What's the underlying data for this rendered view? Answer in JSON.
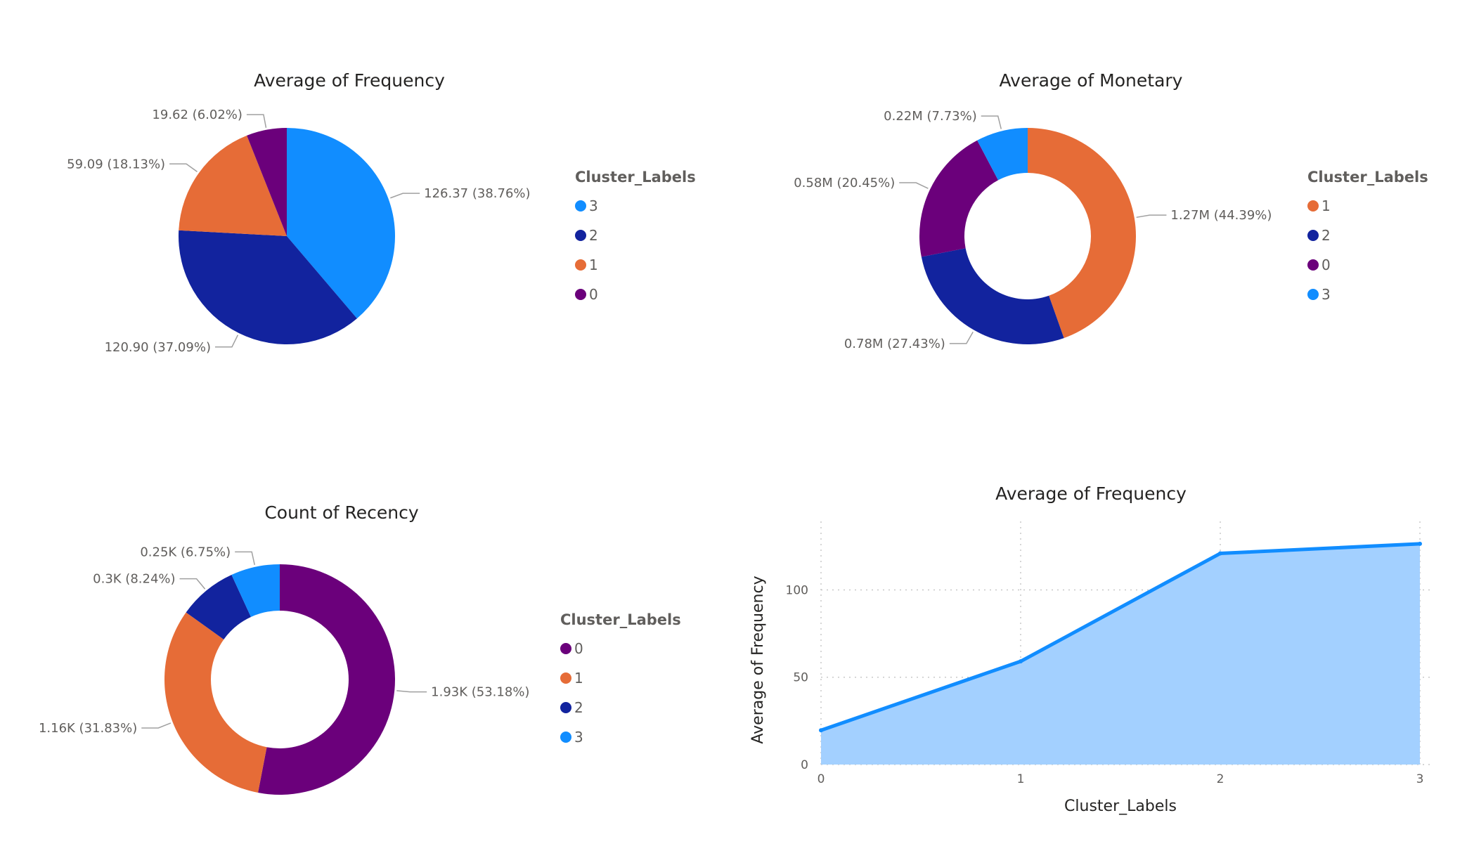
{
  "colors": {
    "0": "#6b007b",
    "1": "#e66c37",
    "2": "#12239e",
    "3": "#118dff",
    "area_fill": "#a3d0ff",
    "line": "#118dff"
  },
  "chart_data": [
    {
      "id": "freq_pie",
      "type": "pie",
      "title": "Average of Frequency",
      "legend_title": "Cluster_Labels",
      "legend_order": [
        "3",
        "2",
        "1",
        "0"
      ],
      "slices": [
        {
          "label": "3",
          "value": 126.37,
          "text": "126.37 (38.76%)"
        },
        {
          "label": "2",
          "value": 120.9,
          "text": "120.90 (37.09%)"
        },
        {
          "label": "1",
          "value": 59.09,
          "text": "59.09 (18.13%)"
        },
        {
          "label": "0",
          "value": 19.62,
          "text": "19.62 (6.02%)"
        }
      ]
    },
    {
      "id": "monetary_donut",
      "type": "pie",
      "title": "Average of Monetary",
      "legend_title": "Cluster_Labels",
      "legend_order": [
        "1",
        "2",
        "0",
        "3"
      ],
      "slices": [
        {
          "label": "1",
          "value": 1.27,
          "text": "1.27M (44.39%)"
        },
        {
          "label": "2",
          "value": 0.78,
          "text": "0.78M (27.43%)"
        },
        {
          "label": "0",
          "value": 0.58,
          "text": "0.58M (20.45%)"
        },
        {
          "label": "3",
          "value": 0.22,
          "text": "0.22M (7.73%)"
        }
      ]
    },
    {
      "id": "recency_donut",
      "type": "pie",
      "title": "Count of Recency",
      "legend_title": "Cluster_Labels",
      "legend_order": [
        "0",
        "1",
        "2",
        "3"
      ],
      "slices": [
        {
          "label": "0",
          "value": 1.93,
          "text": "1.93K (53.18%)"
        },
        {
          "label": "1",
          "value": 1.16,
          "text": "1.16K (31.83%)"
        },
        {
          "label": "2",
          "value": 0.3,
          "text": "0.3K (8.24%)"
        },
        {
          "label": "3",
          "value": 0.25,
          "text": "0.25K (6.75%)"
        }
      ]
    },
    {
      "id": "freq_area",
      "type": "area",
      "title": "Average of Frequency",
      "xlabel": "Cluster_Labels",
      "ylabel": "Average of Frequency",
      "x": [
        0,
        1,
        2,
        3
      ],
      "y": [
        19.62,
        59.09,
        120.9,
        126.37
      ],
      "xticks": [
        "0",
        "1",
        "2",
        "3"
      ],
      "yticks": [
        0,
        50,
        100
      ],
      "ylim": [
        0,
        136
      ],
      "grid": true
    }
  ]
}
